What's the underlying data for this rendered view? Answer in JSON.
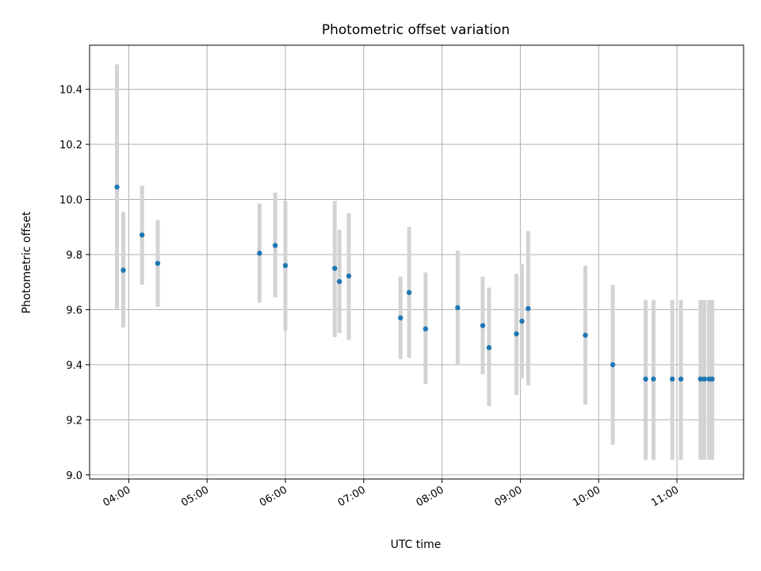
{
  "chart_data": {
    "type": "scatter",
    "title": "Photometric offset variation",
    "xlabel": "UTC time",
    "ylabel": "Photometric offset",
    "x_unit": "hours UTC",
    "xlim": [
      3.5,
      11.85
    ],
    "ylim": [
      8.985,
      10.56
    ],
    "x_ticks": [
      {
        "value": 4,
        "label": "04:00"
      },
      {
        "value": 5,
        "label": "05:00"
      },
      {
        "value": 6,
        "label": "06:00"
      },
      {
        "value": 7,
        "label": "07:00"
      },
      {
        "value": 8,
        "label": "08:00"
      },
      {
        "value": 9,
        "label": "09:00"
      },
      {
        "value": 10,
        "label": "10:00"
      },
      {
        "value": 11,
        "label": "11:00"
      }
    ],
    "y_ticks": [
      {
        "value": 9.0,
        "label": "9.0"
      },
      {
        "value": 9.2,
        "label": "9.2"
      },
      {
        "value": 9.4,
        "label": "9.4"
      },
      {
        "value": 9.6,
        "label": "9.6"
      },
      {
        "value": 9.8,
        "label": "9.8"
      },
      {
        "value": 10.0,
        "label": "10.0"
      },
      {
        "value": 10.2,
        "label": "10.2"
      },
      {
        "value": 10.4,
        "label": "10.4"
      }
    ],
    "grid": true,
    "colors": {
      "point": "#1f77b4",
      "errorbar": "#d3d3d3",
      "grid": "#b0b0b0"
    },
    "points": [
      {
        "x": 3.85,
        "y": 10.045,
        "ylow": 9.6,
        "yhigh": 10.49
      },
      {
        "x": 3.93,
        "y": 9.743,
        "ylow": 9.535,
        "yhigh": 9.955
      },
      {
        "x": 4.17,
        "y": 9.871,
        "ylow": 9.69,
        "yhigh": 10.05
      },
      {
        "x": 4.37,
        "y": 9.768,
        "ylow": 9.61,
        "yhigh": 9.925
      },
      {
        "x": 5.67,
        "y": 9.805,
        "ylow": 9.625,
        "yhigh": 9.985
      },
      {
        "x": 5.87,
        "y": 9.833,
        "ylow": 9.645,
        "yhigh": 10.025
      },
      {
        "x": 6.0,
        "y": 9.76,
        "ylow": 9.525,
        "yhigh": 9.995
      },
      {
        "x": 6.63,
        "y": 9.75,
        "ylow": 9.5,
        "yhigh": 9.995
      },
      {
        "x": 6.69,
        "y": 9.702,
        "ylow": 9.515,
        "yhigh": 9.89
      },
      {
        "x": 6.81,
        "y": 9.722,
        "ylow": 9.49,
        "yhigh": 9.95
      },
      {
        "x": 7.47,
        "y": 9.57,
        "ylow": 9.42,
        "yhigh": 9.72
      },
      {
        "x": 7.58,
        "y": 9.662,
        "ylow": 9.425,
        "yhigh": 9.9
      },
      {
        "x": 7.79,
        "y": 9.53,
        "ylow": 9.33,
        "yhigh": 9.735
      },
      {
        "x": 8.2,
        "y": 9.607,
        "ylow": 9.4,
        "yhigh": 9.815
      },
      {
        "x": 8.52,
        "y": 9.542,
        "ylow": 9.365,
        "yhigh": 9.72
      },
      {
        "x": 8.6,
        "y": 9.462,
        "ylow": 9.25,
        "yhigh": 9.68
      },
      {
        "x": 8.95,
        "y": 9.512,
        "ylow": 9.29,
        "yhigh": 9.73
      },
      {
        "x": 9.02,
        "y": 9.558,
        "ylow": 9.35,
        "yhigh": 9.765
      },
      {
        "x": 9.1,
        "y": 9.604,
        "ylow": 9.325,
        "yhigh": 9.885
      },
      {
        "x": 9.83,
        "y": 9.507,
        "ylow": 9.255,
        "yhigh": 9.76
      },
      {
        "x": 10.18,
        "y": 9.4,
        "ylow": 9.11,
        "yhigh": 9.69
      },
      {
        "x": 10.6,
        "y": 9.348,
        "ylow": 9.055,
        "yhigh": 9.635
      },
      {
        "x": 10.7,
        "y": 9.348,
        "ylow": 9.055,
        "yhigh": 9.635
      },
      {
        "x": 10.94,
        "y": 9.348,
        "ylow": 9.055,
        "yhigh": 9.635
      },
      {
        "x": 11.05,
        "y": 9.348,
        "ylow": 9.055,
        "yhigh": 9.635
      },
      {
        "x": 11.3,
        "y": 9.348,
        "ylow": 9.055,
        "yhigh": 9.635
      },
      {
        "x": 11.35,
        "y": 9.348,
        "ylow": 9.055,
        "yhigh": 9.635
      },
      {
        "x": 11.41,
        "y": 9.348,
        "ylow": 9.055,
        "yhigh": 9.635
      },
      {
        "x": 11.45,
        "y": 9.348,
        "ylow": 9.055,
        "yhigh": 9.635
      }
    ]
  }
}
